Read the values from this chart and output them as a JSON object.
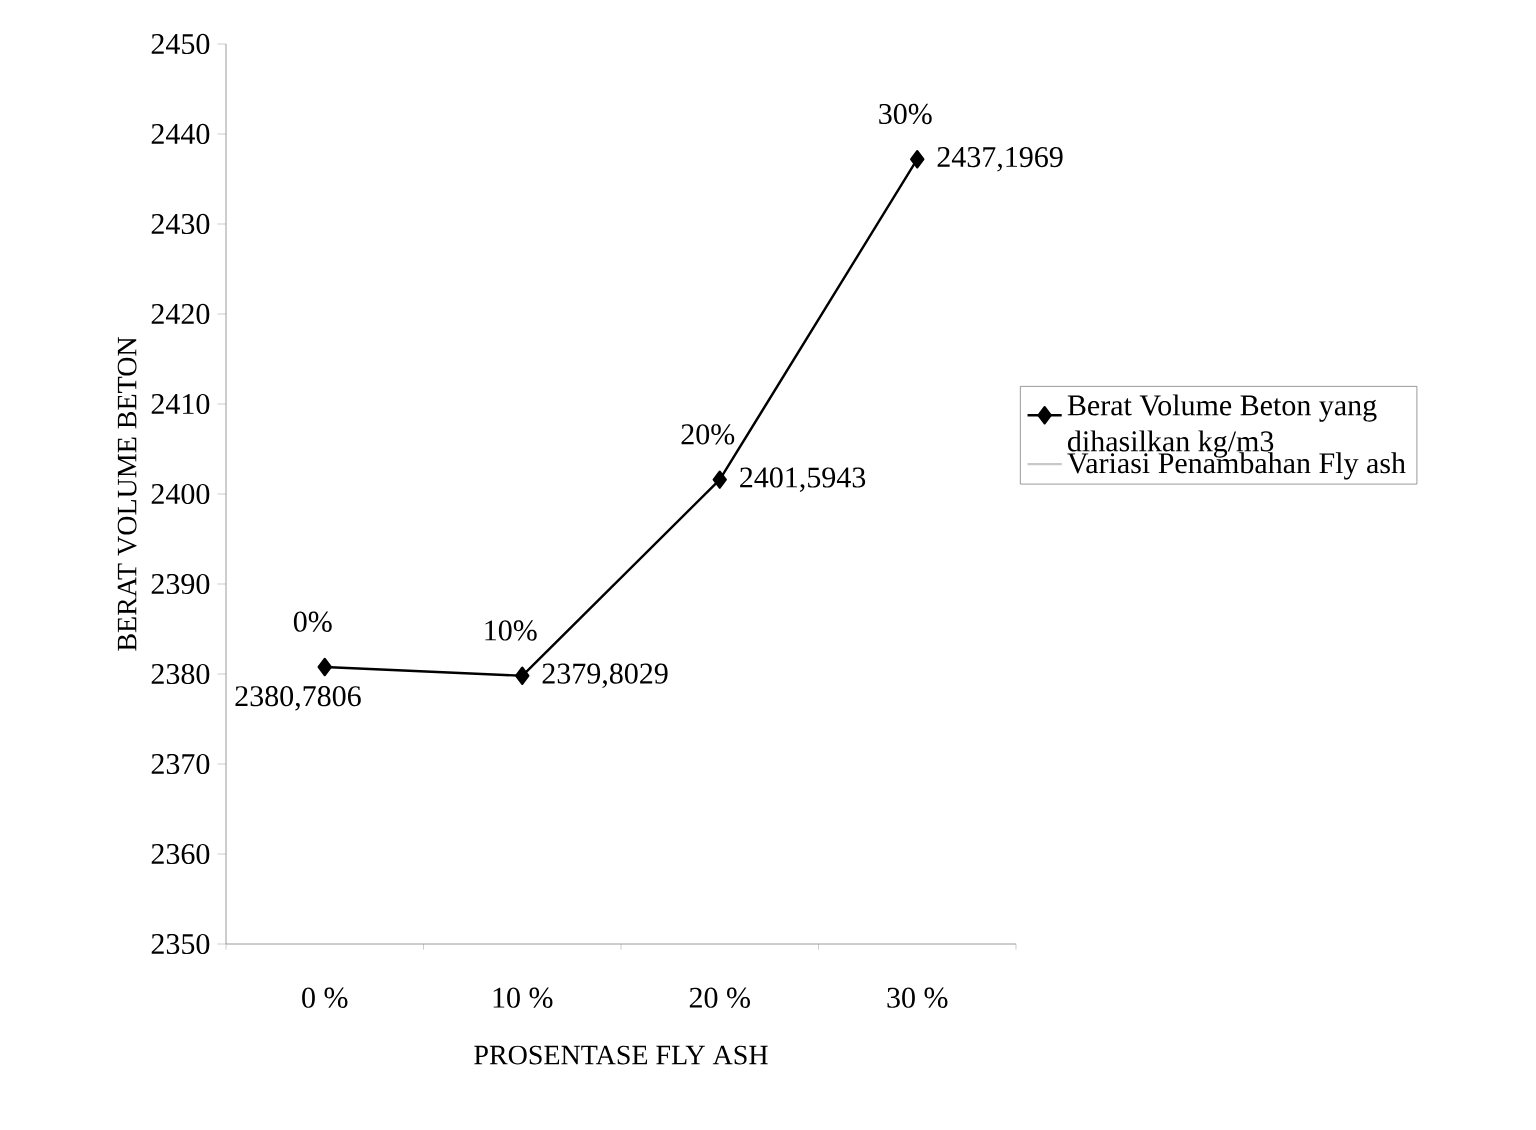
{
  "chart_data": {
    "type": "line",
    "xlabel": "PROSENTASE FLY ASH",
    "ylabel": "BERAT VOLUME BETON",
    "categories": [
      "0 %",
      "10 %",
      "20 %",
      "30 %"
    ],
    "series": [
      {
        "name": "Berat Volume Beton yang dihasilkan kg/m3",
        "color": "#000000",
        "values": [
          2380.7806,
          2379.8029,
          2401.5943,
          2437.1969
        ],
        "value_labels": [
          "2380,7806",
          "2379,8029",
          "2401,5943",
          "2437,1969"
        ],
        "marker": "diamond"
      },
      {
        "name": "Variasi Penambahan Fly ash",
        "color": "#c8c8c8",
        "values": [
          null,
          null,
          null,
          null
        ],
        "marker": "none"
      }
    ],
    "annotations": [
      {
        "text": "0%",
        "x": "0 %",
        "y": 2380.7806
      },
      {
        "text": "10%",
        "x": "10 %",
        "y": 2379.8029
      },
      {
        "text": "20%",
        "x": "20 %",
        "y": 2401.5943
      },
      {
        "text": "30%",
        "x": "30 %",
        "y": 2437.1969
      }
    ],
    "ylim": [
      2350,
      2450
    ],
    "yticks": [
      2350,
      2360,
      2370,
      2380,
      2390,
      2400,
      2410,
      2420,
      2430,
      2440,
      2450
    ],
    "grid": false,
    "legend": "right",
    "line_style": "solid"
  }
}
